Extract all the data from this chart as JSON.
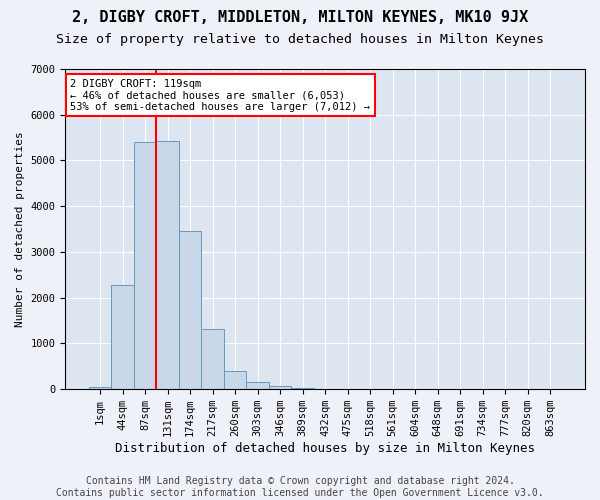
{
  "title": "2, DIGBY CROFT, MIDDLETON, MILTON KEYNES, MK10 9JX",
  "subtitle": "Size of property relative to detached houses in Milton Keynes",
  "xlabel": "Distribution of detached houses by size in Milton Keynes",
  "ylabel": "Number of detached properties",
  "footer_line1": "Contains HM Land Registry data © Crown copyright and database right 2024.",
  "footer_line2": "Contains public sector information licensed under the Open Government Licence v3.0.",
  "bins": [
    "1sqm",
    "44sqm",
    "87sqm",
    "131sqm",
    "174sqm",
    "217sqm",
    "260sqm",
    "303sqm",
    "346sqm",
    "389sqm",
    "432sqm",
    "475sqm",
    "518sqm",
    "561sqm",
    "604sqm",
    "648sqm",
    "691sqm",
    "734sqm",
    "777sqm",
    "820sqm",
    "863sqm"
  ],
  "bar_values": [
    50,
    2280,
    5400,
    5420,
    3450,
    1320,
    390,
    150,
    70,
    20,
    5,
    0,
    0,
    0,
    0,
    0,
    0,
    0,
    0,
    0,
    0
  ],
  "bar_color": "#c8d8e8",
  "bar_edgecolor": "#6699bb",
  "vline_position": 2.5,
  "vline_color": "red",
  "annotation_text": "2 DIGBY CROFT: 119sqm\n← 46% of detached houses are smaller (6,053)\n53% of semi-detached houses are larger (7,012) →",
  "annotation_box_color": "white",
  "annotation_box_edgecolor": "red",
  "ylim": [
    0,
    7000
  ],
  "yticks": [
    0,
    1000,
    2000,
    3000,
    4000,
    5000,
    6000,
    7000
  ],
  "bg_color": "#eef2f8",
  "plot_bg_color": "#dde6f0",
  "title_fontsize": 11,
  "subtitle_fontsize": 9.5,
  "xlabel_fontsize": 9,
  "ylabel_fontsize": 8,
  "tick_fontsize": 7.5,
  "footer_fontsize": 7
}
